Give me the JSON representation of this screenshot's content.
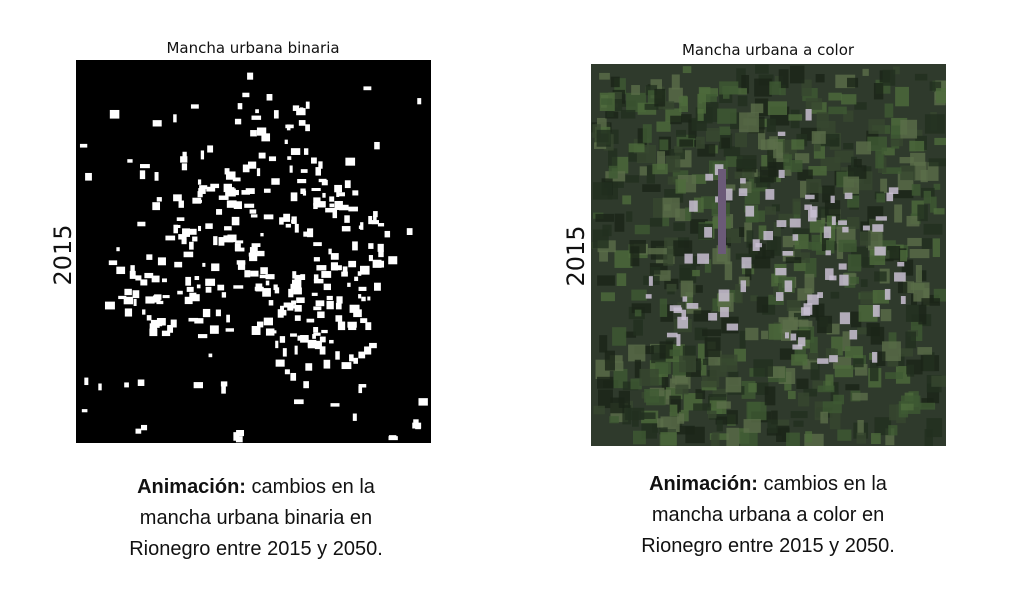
{
  "panels": [
    {
      "title": "Mancha urbana binaria",
      "ylabel": "2015",
      "caption_label": "Animación:",
      "caption_lines": [
        "cambios en la",
        "mancha urbana binaria en",
        "Rionegro entre 2015 y 2050."
      ]
    },
    {
      "title": "Mancha urbana a color",
      "ylabel": "2015",
      "caption_label": "Animación:",
      "caption_lines": [
        "cambios en la",
        "mancha urbana a color en",
        "Rionegro entre 2015 y 2050."
      ]
    }
  ]
}
